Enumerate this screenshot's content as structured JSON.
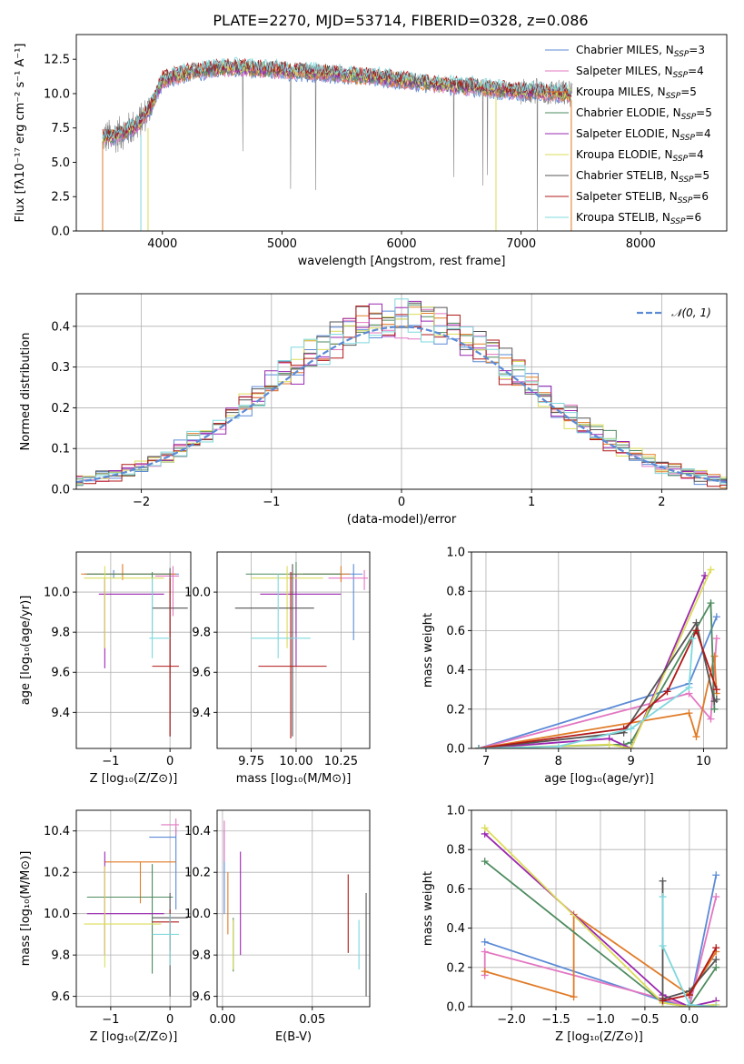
{
  "figure": {
    "title": "PLATE=2270, MJD=53714, FIBERID=0328, z=0.086"
  },
  "chart_data": [
    {
      "id": "spectrum",
      "type": "line",
      "xlabel": "wavelength [Angstrom, rest frame]",
      "ylabel": "Flux [fλ10⁻¹⁷ erg cm⁻² s⁻¹ A⁻¹]",
      "xlim": [
        3280,
        8720
      ],
      "ylim": [
        0,
        14.3
      ],
      "xticks": [
        4000,
        5000,
        6000,
        7000,
        8000
      ],
      "yticks": [
        0.0,
        2.5,
        5.0,
        7.5,
        10.0,
        12.5
      ],
      "grid": false,
      "legend_position": "upper-right",
      "series": [
        {
          "name": "Chabrier MILES, N_SSP=3",
          "color": "#5b8ad6"
        },
        {
          "name": "Salpeter MILES, N_SSP=4",
          "color": "#e377c2"
        },
        {
          "name": "Kroupa MILES, N_SSP=5",
          "color": "#e07b27"
        },
        {
          "name": "Chabrier ELODIE, N_SSP=5",
          "color": "#4e8b5f"
        },
        {
          "name": "Salpeter ELODIE, N_SSP=4",
          "color": "#9b27b0"
        },
        {
          "name": "Kroupa ELODIE, N_SSP=4",
          "color": "#dcdc5a"
        },
        {
          "name": "Chabrier STELIB, N_SSP=5",
          "color": "#555555"
        },
        {
          "name": "Salpeter STELIB, N_SSP=6",
          "color": "#b01818"
        },
        {
          "name": "Kroupa STELIB, N_SSP=6",
          "color": "#7fd8dd"
        }
      ],
      "legend_labels": [
        {
          "main": "Chabrier MILES, N",
          "sub": "SSP",
          "tail": "=3"
        },
        {
          "main": "Salpeter MILES, N",
          "sub": "SSP",
          "tail": "=4"
        },
        {
          "main": "Kroupa MILES, N",
          "sub": "SSP",
          "tail": "=5"
        },
        {
          "main": "Chabrier ELODIE, N",
          "sub": "SSP",
          "tail": "=5"
        },
        {
          "main": "Salpeter ELODIE, N",
          "sub": "SSP",
          "tail": "=4"
        },
        {
          "main": "Kroupa ELODIE, N",
          "sub": "SSP",
          "tail": "=4"
        },
        {
          "main": "Chabrier STELIB, N",
          "sub": "SSP",
          "tail": "=5"
        },
        {
          "main": "Salpeter STELIB, N",
          "sub": "SSP",
          "tail": "=6"
        },
        {
          "main": "Kroupa STELIB, N",
          "sub": "SSP",
          "tail": "=6"
        }
      ],
      "data_color": "#808080",
      "model_trend": {
        "x": [
          3500,
          3600,
          3700,
          3800,
          3900,
          4000,
          4100,
          4200,
          4400,
          4600,
          4800,
          5000,
          5200,
          5400,
          5600,
          5800,
          6000,
          6200,
          6400,
          6600,
          6800,
          7000,
          7200,
          7400
        ],
        "y": [
          6.8,
          6.9,
          7.3,
          7.8,
          9.0,
          11.0,
          11.3,
          11.5,
          11.8,
          11.9,
          11.8,
          11.7,
          11.6,
          11.5,
          11.3,
          11.2,
          11.0,
          10.8,
          10.6,
          10.5,
          10.3,
          10.2,
          10.1,
          10.0
        ]
      }
    },
    {
      "id": "residual-histogram",
      "type": "histogram",
      "xlabel": "(data-model)/error",
      "ylabel": "Normed distribution",
      "xlim": [
        -2.5,
        2.5
      ],
      "ylim": [
        0,
        0.48
      ],
      "xticks": [
        -2,
        -1,
        0,
        1,
        2
      ],
      "yticks": [
        0.0,
        0.1,
        0.2,
        0.3,
        0.4
      ],
      "grid": true,
      "legend_position": "upper-right",
      "reference_curve": {
        "name": "𝒩(0, 1)",
        "color": "#5b8ad6",
        "style": "dashed"
      }
    },
    {
      "id": "age-vs-Z",
      "type": "errorbar",
      "xlabel": "Z [log₁₀(Z/Z⊙)]",
      "ylabel": "age  [log₁₀(age/yr)]",
      "xlim": [
        -1.58,
        0.35
      ],
      "ylim": [
        9.22,
        10.2
      ],
      "xticks": [
        -1,
        0
      ],
      "yticks": [
        9.4,
        9.6,
        9.8,
        10.0
      ],
      "grid": true,
      "points": [
        {
          "x": -0.95,
          "y": 10.09,
          "xerr": [
            0.5,
            1.1
          ],
          "yerr": [
            0.02,
            0.02
          ],
          "color": "#5b8ad6"
        },
        {
          "x": 0.05,
          "y": 10.08,
          "xerr": [
            0.3,
            0.1
          ],
          "yerr": [
            0.2,
            0.05
          ],
          "color": "#e377c2"
        },
        {
          "x": -0.8,
          "y": 10.09,
          "xerr": [
            0.7,
            0.9
          ],
          "yerr": [
            0.03,
            0.05
          ],
          "color": "#e07b27"
        },
        {
          "x": -0.3,
          "y": 10.09,
          "xerr": [
            1.1,
            0.3
          ],
          "yerr": [
            0.3,
            0.01
          ],
          "color": "#4e8b5f"
        },
        {
          "x": -1.1,
          "y": 9.99,
          "xerr": [
            0.1,
            1.0
          ],
          "yerr": [
            0.37,
            0.08
          ],
          "color": "#9b27b0"
        },
        {
          "x": -1.1,
          "y": 10.07,
          "xerr": [
            0.35,
            1.0
          ],
          "yerr": [
            0.35,
            0.06
          ],
          "color": "#dcdc5a"
        },
        {
          "x": 0.0,
          "y": 9.92,
          "xerr": [
            0.3,
            0.3
          ],
          "yerr": [
            0.64,
            0.2
          ],
          "color": "#555555"
        },
        {
          "x": 0.0,
          "y": 9.63,
          "xerr": [
            0.3,
            0.15
          ],
          "yerr": [
            0.35,
            0.44
          ],
          "color": "#b01818"
        },
        {
          "x": -0.3,
          "y": 9.77,
          "xerr": [
            0.05,
            0.3
          ],
          "yerr": [
            0.1,
            0.3
          ],
          "color": "#7fd8dd"
        }
      ]
    },
    {
      "id": "age-vs-mass",
      "type": "errorbar",
      "xlabel": "mass [log₁₀(M/M⊙)]",
      "ylabel": "",
      "xlim": [
        9.56,
        10.41
      ],
      "ylim": [
        9.22,
        10.2
      ],
      "xticks": [
        9.75,
        10.0,
        10.25
      ],
      "yticks": [
        9.4,
        9.6,
        9.8,
        10.0
      ],
      "grid": true,
      "points": [
        {
          "x": 10.32,
          "y": 10.09,
          "xerr": [
            0.28,
            0.05
          ],
          "yerr": [
            0.33,
            0.05
          ],
          "color": "#5b8ad6"
        },
        {
          "x": 10.38,
          "y": 10.07,
          "xerr": [
            0.2,
            0.02
          ],
          "yerr": [
            0.06,
            0.04
          ],
          "color": "#e377c2"
        },
        {
          "x": 10.25,
          "y": 10.09,
          "xerr": [
            0.27,
            0.05
          ],
          "yerr": [
            0.04,
            0.04
          ],
          "color": "#e07b27"
        },
        {
          "x": 10.0,
          "y": 10.09,
          "xerr": [
            0.28,
            0.25
          ],
          "yerr": [
            0.3,
            0.06
          ],
          "color": "#4e8b5f"
        },
        {
          "x": 10.0,
          "y": 9.99,
          "xerr": [
            0.2,
            0.25
          ],
          "yerr": [
            0.36,
            0.1
          ],
          "color": "#9b27b0"
        },
        {
          "x": 9.95,
          "y": 10.07,
          "xerr": [
            0.2,
            0.2
          ],
          "yerr": [
            0.35,
            0.06
          ],
          "color": "#dcdc5a"
        },
        {
          "x": 9.98,
          "y": 9.92,
          "xerr": [
            0.32,
            0.12
          ],
          "yerr": [
            0.64,
            0.22
          ],
          "color": "#555555"
        },
        {
          "x": 9.97,
          "y": 9.63,
          "xerr": [
            0.18,
            0.2
          ],
          "yerr": [
            0.36,
            0.47
          ],
          "color": "#b01818"
        },
        {
          "x": 9.9,
          "y": 9.77,
          "xerr": [
            0.15,
            0.18
          ],
          "yerr": [
            0.1,
            0.32
          ],
          "color": "#7fd8dd"
        }
      ]
    },
    {
      "id": "weight-vs-age",
      "type": "line",
      "xlabel": "age  [log₁₀(age/yr)]",
      "ylabel": "mass weight",
      "xlim": [
        6.8,
        10.32
      ],
      "ylim": [
        0,
        1.0
      ],
      "xticks": [
        7,
        8,
        9,
        10
      ],
      "yticks": [
        0.0,
        0.2,
        0.4,
        0.6,
        0.8,
        1.0
      ],
      "grid": true,
      "series": [
        {
          "color": "#5b8ad6",
          "x": [
            6.9,
            9.8,
            10.18
          ],
          "y": [
            0.0,
            0.33,
            0.67
          ]
        },
        {
          "color": "#e377c2",
          "x": [
            6.9,
            9.8,
            10.1,
            10.18
          ],
          "y": [
            0.0,
            0.28,
            0.15,
            0.56
          ]
        },
        {
          "color": "#e07b27",
          "x": [
            6.9,
            9.8,
            9.9,
            10.15,
            10.18
          ],
          "y": [
            0.0,
            0.18,
            0.06,
            0.47,
            0.28
          ]
        },
        {
          "color": "#4e8b5f",
          "x": [
            6.9,
            8.9,
            9.0,
            10.1,
            10.15
          ],
          "y": [
            0.0,
            0.02,
            0.03,
            0.74,
            0.2
          ]
        },
        {
          "color": "#9b27b0",
          "x": [
            6.9,
            8.7,
            9.0,
            10.02
          ],
          "y": [
            0.0,
            0.05,
            0.0,
            0.88
          ]
        },
        {
          "color": "#dcdc5a",
          "x": [
            6.9,
            8.7,
            9.0,
            10.1
          ],
          "y": [
            0.0,
            0.02,
            0.0,
            0.91
          ]
        },
        {
          "color": "#555555",
          "x": [
            6.9,
            8.9,
            9.9,
            10.15,
            10.18
          ],
          "y": [
            0.0,
            0.08,
            0.64,
            0.24,
            0.25
          ]
        },
        {
          "color": "#b01818",
          "x": [
            6.9,
            8.9,
            9.5,
            9.9,
            10.18
          ],
          "y": [
            0.0,
            0.1,
            0.29,
            0.6,
            0.3
          ]
        },
        {
          "color": "#7fd8dd",
          "x": [
            6.9,
            8.0,
            9.0,
            9.8,
            9.85
          ],
          "y": [
            0.0,
            0.01,
            0.1,
            0.31,
            0.56
          ]
        }
      ]
    },
    {
      "id": "mass-vs-Z",
      "type": "errorbar",
      "xlabel": "Z [log₁₀(Z/Z⊙)]",
      "ylabel": "mass [log₁₀(M/M⊙)]",
      "xlim": [
        -1.58,
        0.35
      ],
      "ylim": [
        9.55,
        10.5
      ],
      "xticks": [
        -1,
        0
      ],
      "yticks": [
        9.6,
        9.8,
        10.0,
        10.2,
        10.4
      ],
      "grid": true,
      "points": [
        {
          "x": 0.1,
          "y": 10.37,
          "xerr": [
            0.45,
            0.0
          ],
          "yerr": [
            0.35,
            0.05
          ],
          "color": "#5b8ad6"
        },
        {
          "x": 0.1,
          "y": 10.43,
          "xerr": [
            0.25,
            0.05
          ],
          "yerr": [
            0.05,
            0.03
          ],
          "color": "#e377c2"
        },
        {
          "x": -0.5,
          "y": 10.25,
          "xerr": [
            0.6,
            0.6
          ],
          "yerr": [
            0.2,
            0.0
          ],
          "color": "#e07b27"
        },
        {
          "x": -0.3,
          "y": 10.08,
          "xerr": [
            1.1,
            0.35
          ],
          "yerr": [
            0.37,
            0.16
          ],
          "color": "#4e8b5f"
        },
        {
          "x": -1.1,
          "y": 10.0,
          "xerr": [
            0.3,
            1.0
          ],
          "yerr": [
            0.2,
            0.3
          ],
          "color": "#9b27b0"
        },
        {
          "x": -1.1,
          "y": 9.95,
          "xerr": [
            0.35,
            0.95
          ],
          "yerr": [
            0.21,
            0.28
          ],
          "color": "#dcdc5a"
        },
        {
          "x": 0.0,
          "y": 9.98,
          "xerr": [
            0.3,
            0.3
          ],
          "yerr": [
            0.38,
            0.12
          ],
          "color": "#555555"
        },
        {
          "x": 0.0,
          "y": 9.96,
          "xerr": [
            0.3,
            0.15
          ],
          "yerr": [
            0.14,
            0.06
          ],
          "color": "#b01818"
        },
        {
          "x": 0.0,
          "y": 9.9,
          "xerr": [
            0.3,
            0.15
          ],
          "yerr": [
            0.15,
            0.1
          ],
          "color": "#7fd8dd"
        }
      ]
    },
    {
      "id": "mass-vs-EBV",
      "type": "errorbar",
      "xlabel": "E(B-V)",
      "ylabel": "",
      "xlim": [
        -0.003,
        0.082
      ],
      "ylim": [
        9.55,
        10.5
      ],
      "xticks": [
        0.0,
        0.05
      ],
      "yticks": [
        9.6,
        9.8,
        10.0,
        10.2,
        10.4
      ],
      "grid": true,
      "points": [
        {
          "x": 0.001,
          "y": 10.2,
          "xerr": [
            0,
            0
          ],
          "yerr": [
            0.2,
            0.2
          ],
          "color": "#5b8ad6"
        },
        {
          "x": 0.001,
          "y": 10.35,
          "xerr": [
            0,
            0
          ],
          "yerr": [
            0.1,
            0.1
          ],
          "color": "#e377c2"
        },
        {
          "x": 0.003,
          "y": 10.05,
          "xerr": [
            0,
            0
          ],
          "yerr": [
            0.15,
            0.15
          ],
          "color": "#e07b27"
        },
        {
          "x": 0.006,
          "y": 9.85,
          "xerr": [
            0,
            0
          ],
          "yerr": [
            0.13,
            0.13
          ],
          "color": "#4e8b5f"
        },
        {
          "x": 0.01,
          "y": 10.05,
          "xerr": [
            0,
            0
          ],
          "yerr": [
            0.25,
            0.25
          ],
          "color": "#9b27b0"
        },
        {
          "x": 0.006,
          "y": 9.85,
          "xerr": [
            0,
            0
          ],
          "yerr": [
            0.12,
            0.12
          ],
          "color": "#dcdc5a"
        },
        {
          "x": 0.08,
          "y": 9.85,
          "xerr": [
            0,
            0
          ],
          "yerr": [
            0.25,
            0.25
          ],
          "color": "#555555"
        },
        {
          "x": 0.07,
          "y": 10.0,
          "xerr": [
            0,
            0
          ],
          "yerr": [
            0.19,
            0.19
          ],
          "color": "#b01818"
        },
        {
          "x": 0.076,
          "y": 9.85,
          "xerr": [
            0,
            0
          ],
          "yerr": [
            0.12,
            0.12
          ],
          "color": "#7fd8dd"
        }
      ]
    },
    {
      "id": "weight-vs-Z",
      "type": "line",
      "xlabel": "Z [log₁₀(Z/Z⊙)]",
      "ylabel": "mass weight",
      "xlim": [
        -2.45,
        0.42
      ],
      "ylim": [
        0,
        1.0
      ],
      "xticks": [
        -2.0,
        -1.5,
        -1.0,
        -0.5,
        0.0
      ],
      "yticks": [
        0.0,
        0.2,
        0.4,
        0.6,
        0.8,
        1.0
      ],
      "grid": true,
      "series": [
        {
          "color": "#5b8ad6",
          "x": [
            -2.3,
            -0.3,
            0.0,
            0.3
          ],
          "y": [
            0.33,
            0.03,
            0.0,
            0.67
          ]
        },
        {
          "color": "#e377c2",
          "x": [
            -2.3,
            -2.3,
            -0.3,
            0.0,
            0.3
          ],
          "y": [
            0.16,
            0.28,
            0.04,
            0.0,
            0.56
          ]
        },
        {
          "color": "#e07b27",
          "x": [
            -2.3,
            -1.3,
            -1.3,
            0.0,
            0.3
          ],
          "y": [
            0.18,
            0.05,
            0.47,
            0.06,
            0.28
          ]
        },
        {
          "color": "#4e8b5f",
          "x": [
            -2.3,
            -0.3,
            0.0,
            0.3
          ],
          "y": [
            0.74,
            0.02,
            0.0,
            0.2
          ]
        },
        {
          "color": "#9b27b0",
          "x": [
            -2.3,
            -0.3,
            0.0,
            0.3
          ],
          "y": [
            0.88,
            0.06,
            0.0,
            0.03
          ]
        },
        {
          "color": "#dcdc5a",
          "x": [
            -2.3,
            -0.3,
            0.0,
            0.3
          ],
          "y": [
            0.91,
            0.02,
            0.0,
            0.01
          ]
        },
        {
          "color": "#555555",
          "x": [
            -0.3,
            -0.3,
            0.0,
            0.3
          ],
          "y": [
            0.64,
            0.04,
            0.08,
            0.24
          ]
        },
        {
          "color": "#b01818",
          "x": [
            -0.3,
            0.0,
            0.3
          ],
          "y": [
            0.03,
            0.06,
            0.3
          ]
        },
        {
          "color": "#7fd8dd",
          "x": [
            -0.3,
            -0.3,
            0.0,
            0.3
          ],
          "y": [
            0.56,
            0.31,
            0.01,
            0.0
          ]
        }
      ]
    }
  ]
}
